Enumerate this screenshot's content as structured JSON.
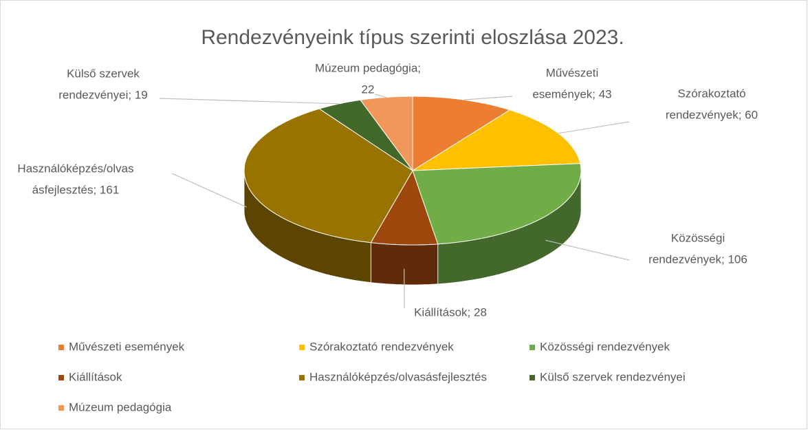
{
  "chart_data": {
    "type": "pie3d",
    "title": "Rendezvényeink típus szerinti eloszlása 2023.",
    "categories": [
      "Művészeti események",
      "Szórakoztató rendezvények",
      "Közösségi rendezvények",
      "Kiállítások",
      "Használóképzés/olvasásfejlesztés",
      "Külső szervek rendezvényei",
      "Múzeum pedagógia"
    ],
    "values": [
      43,
      60,
      106,
      28,
      161,
      19,
      22
    ],
    "value_labels": [
      [
        "Művészeti",
        "események; 43"
      ],
      [
        "Szórakoztató",
        "rendezvények; 60"
      ],
      [
        "Közösségi",
        "rendezvények; 106"
      ],
      [
        "Kiállítások; 28"
      ],
      [
        "Használóképzés/olvas",
        "ásfejlesztés; 161"
      ],
      [
        "Külső szervek",
        "rendezvényei; 19"
      ],
      [
        "Múzeum pedagógia;",
        "22"
      ]
    ],
    "colors": [
      "#ED7D31",
      "#FFC000",
      "#70AD47",
      "#9E480E",
      "#997300",
      "#43682B",
      "#F1975A"
    ],
    "legend": "bottom"
  }
}
